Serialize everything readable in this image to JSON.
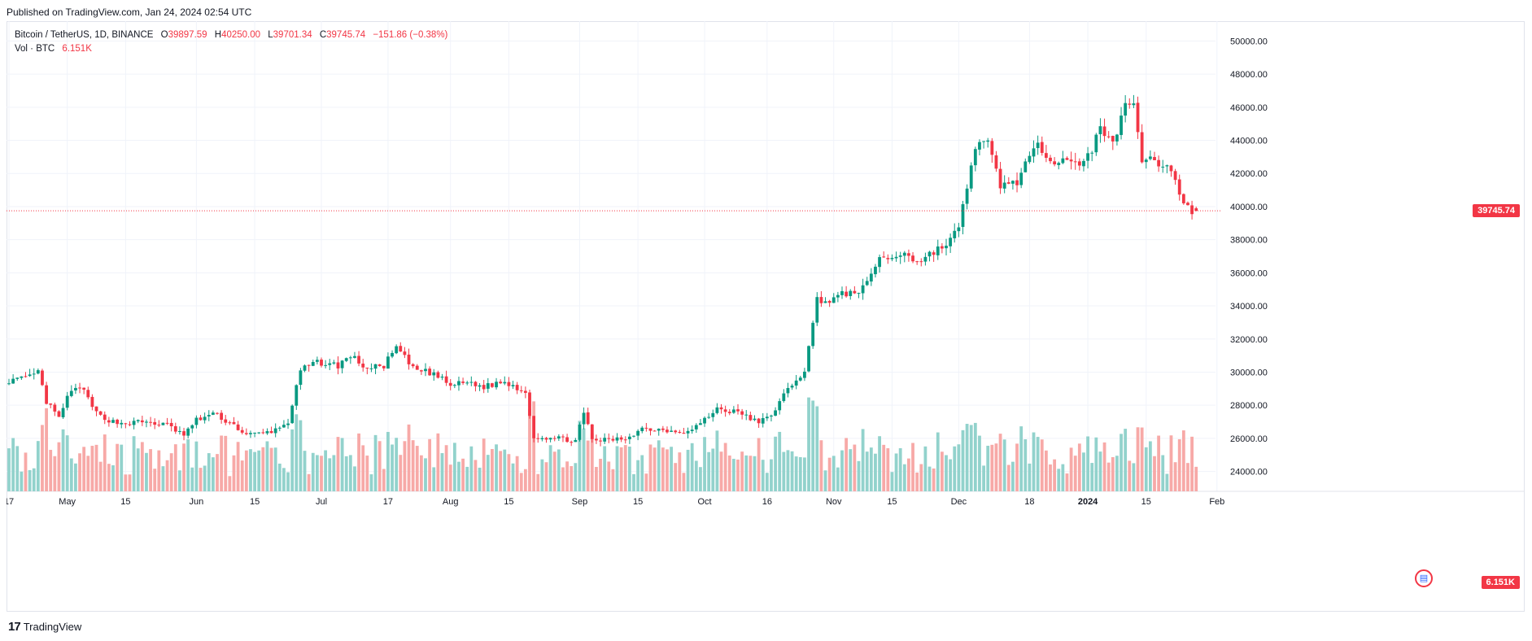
{
  "header": {
    "published": "Published on TradingView.com, Jan 24, 2024 02:54 UTC"
  },
  "legend": {
    "symbol": "Bitcoin / TetherUS, 1D, BINANCE",
    "open_label": "O",
    "open": "39897.59",
    "high_label": "H",
    "high": "40250.00",
    "low_label": "L",
    "low": "39701.34",
    "close_label": "C",
    "close": "39745.74",
    "change": "−151.86 (−0.38%)",
    "vol_label": "Vol · BTC",
    "vol_value": "6.151K"
  },
  "price_tag": "39745.74",
  "vol_tag": "6.151K",
  "footer": {
    "brand": "TradingView",
    "logo": "17"
  },
  "colors": {
    "up": "#089981",
    "down": "#f23645",
    "up_vol": "#92d2cc",
    "down_vol": "#f7a9a7",
    "grid": "#f0f3fa"
  },
  "chart_data": {
    "type": "candlestick",
    "title": "Bitcoin / TetherUS, 1D, BINANCE",
    "ylim": [
      22800,
      51200
    ],
    "y_ticks": [
      24000,
      26000,
      28000,
      30000,
      32000,
      34000,
      36000,
      38000,
      40000,
      42000,
      44000,
      46000,
      48000,
      50000
    ],
    "y_tick_labels": [
      "24000.00",
      "26000.00",
      "28000.00",
      "30000.00",
      "32000.00",
      "34000.00",
      "36000.00",
      "38000.00",
      "40000.00",
      "42000.00",
      "44000.00",
      "46000.00",
      "48000.00",
      "50000.00"
    ],
    "x_ticks": [
      {
        "day": 0,
        "label": "17"
      },
      {
        "day": 14,
        "label": "May"
      },
      {
        "day": 28,
        "label": "15"
      },
      {
        "day": 45,
        "label": "Jun"
      },
      {
        "day": 59,
        "label": "15"
      },
      {
        "day": 75,
        "label": "Jul"
      },
      {
        "day": 91,
        "label": "17"
      },
      {
        "day": 106,
        "label": "Aug"
      },
      {
        "day": 120,
        "label": "15"
      },
      {
        "day": 137,
        "label": "Sep"
      },
      {
        "day": 151,
        "label": "15"
      },
      {
        "day": 167,
        "label": "Oct"
      },
      {
        "day": 182,
        "label": "16"
      },
      {
        "day": 198,
        "label": "Nov"
      },
      {
        "day": 212,
        "label": "15"
      },
      {
        "day": 228,
        "label": "Dec"
      },
      {
        "day": 245,
        "label": "18"
      },
      {
        "day": 259,
        "label": "2024"
      },
      {
        "day": 273,
        "label": "15"
      },
      {
        "day": 290,
        "label": "Feb"
      }
    ],
    "anchors": [
      [
        0,
        29500
      ],
      [
        4,
        29600
      ],
      [
        7,
        30000
      ],
      [
        9,
        28200
      ],
      [
        12,
        27200
      ],
      [
        14,
        28500
      ],
      [
        17,
        29200
      ],
      [
        21,
        27500
      ],
      [
        25,
        27000
      ],
      [
        28,
        26900
      ],
      [
        32,
        27000
      ],
      [
        38,
        26800
      ],
      [
        42,
        26200
      ],
      [
        45,
        27100
      ],
      [
        49,
        27500
      ],
      [
        54,
        26800
      ],
      [
        57,
        26200
      ],
      [
        61,
        26300
      ],
      [
        64,
        26500
      ],
      [
        67,
        27000
      ],
      [
        70,
        30100
      ],
      [
        74,
        30600
      ],
      [
        79,
        30400
      ],
      [
        82,
        31000
      ],
      [
        86,
        30200
      ],
      [
        90,
        30400
      ],
      [
        93,
        31500
      ],
      [
        97,
        30200
      ],
      [
        102,
        29900
      ],
      [
        106,
        29200
      ],
      [
        110,
        29400
      ],
      [
        114,
        29100
      ],
      [
        118,
        29400
      ],
      [
        121,
        29200
      ],
      [
        124,
        28800
      ],
      [
        126,
        26100
      ],
      [
        131,
        26000
      ],
      [
        136,
        25900
      ],
      [
        138,
        27500
      ],
      [
        140,
        25900
      ],
      [
        144,
        25900
      ],
      [
        148,
        26000
      ],
      [
        152,
        26600
      ],
      [
        158,
        26500
      ],
      [
        163,
        26400
      ],
      [
        166,
        26900
      ],
      [
        170,
        27800
      ],
      [
        174,
        27600
      ],
      [
        176,
        27500
      ],
      [
        180,
        26900
      ],
      [
        184,
        27700
      ],
      [
        186,
        28600
      ],
      [
        189,
        29600
      ],
      [
        191,
        30000
      ],
      [
        194,
        34400
      ],
      [
        197,
        34300
      ],
      [
        200,
        34700
      ],
      [
        203,
        34800
      ],
      [
        206,
        35300
      ],
      [
        209,
        37000
      ],
      [
        212,
        36800
      ],
      [
        215,
        37300
      ],
      [
        218,
        36600
      ],
      [
        222,
        37300
      ],
      [
        225,
        37700
      ],
      [
        228,
        38700
      ],
      [
        232,
        43700
      ],
      [
        235,
        43800
      ],
      [
        238,
        41300
      ],
      [
        242,
        41500
      ],
      [
        244,
        42600
      ],
      [
        247,
        43600
      ],
      [
        251,
        42800
      ],
      [
        254,
        43000
      ],
      [
        257,
        42300
      ],
      [
        260,
        43400
      ],
      [
        262,
        45000
      ],
      [
        264,
        44000
      ],
      [
        266,
        44200
      ],
      [
        268,
        46500
      ],
      [
        270,
        46300
      ],
      [
        272,
        42900
      ],
      [
        275,
        42700
      ],
      [
        278,
        42500
      ],
      [
        280,
        41600
      ],
      [
        282,
        40200
      ],
      [
        284,
        39700
      ],
      [
        285,
        39745
      ]
    ],
    "volume_range_btc": [
      0,
      110000
    ],
    "last_candle": {
      "open": 39897.59,
      "high": 40250.0,
      "low": 39701.34,
      "close": 39745.74,
      "volume": "6.151K"
    }
  }
}
